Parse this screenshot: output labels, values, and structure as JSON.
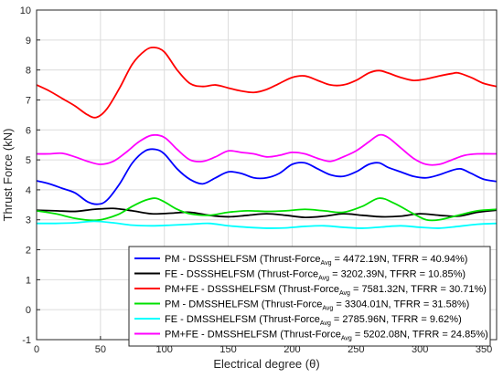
{
  "chart_data": {
    "type": "line",
    "title": "",
    "xlabel": "Electrical degree (θ)",
    "ylabel": "Thrust Force (kN)",
    "xlim": [
      0,
      360
    ],
    "ylim": [
      -1,
      10
    ],
    "xticks": [
      "0",
      "50",
      "100",
      "150",
      "200",
      "250",
      "300",
      "350"
    ],
    "yticks": [
      "-1",
      "0",
      "1",
      "2",
      "3",
      "4",
      "5",
      "6",
      "7",
      "8",
      "9",
      "10"
    ],
    "grid": true,
    "legend_position": "bottom-right",
    "series": [
      {
        "name": "PM - DSSSHELFSM",
        "stat_pre": "(Thrust-Force",
        "stat_sub": "Avg",
        "stat_post": "= 4472.19N, TFRR = 40.94%)",
        "color": "#0000ff",
        "x": [
          0,
          10,
          20,
          30,
          40,
          48,
          55,
          65,
          75,
          85,
          93,
          100,
          110,
          120,
          130,
          140,
          150,
          160,
          170,
          180,
          190,
          200,
          210,
          220,
          230,
          240,
          250,
          260,
          268,
          275,
          285,
          295,
          305,
          315,
          325,
          332,
          340,
          350,
          360
        ],
        "y": [
          4.3,
          4.2,
          4.05,
          3.9,
          3.6,
          3.52,
          3.65,
          4.2,
          4.9,
          5.3,
          5.35,
          5.2,
          4.7,
          4.35,
          4.2,
          4.4,
          4.6,
          4.55,
          4.4,
          4.4,
          4.55,
          4.85,
          4.9,
          4.7,
          4.5,
          4.45,
          4.6,
          4.85,
          4.9,
          4.75,
          4.6,
          4.45,
          4.4,
          4.5,
          4.65,
          4.7,
          4.55,
          4.35,
          4.28
        ]
      },
      {
        "name": "FE - DSSSHELFSM",
        "stat_pre": "(Thrust-Force",
        "stat_sub": "Avg",
        "stat_post": "= 3202.39N, TFRR = 10.85%)",
        "color": "#000000",
        "x": [
          0,
          15,
          30,
          45,
          60,
          75,
          90,
          105,
          120,
          135,
          150,
          165,
          180,
          195,
          210,
          225,
          240,
          255,
          270,
          285,
          300,
          315,
          330,
          345,
          360
        ],
        "y": [
          3.32,
          3.3,
          3.28,
          3.35,
          3.38,
          3.3,
          3.2,
          3.22,
          3.25,
          3.15,
          3.1,
          3.15,
          3.2,
          3.15,
          3.08,
          3.12,
          3.2,
          3.15,
          3.1,
          3.12,
          3.2,
          3.15,
          3.12,
          3.25,
          3.32
        ]
      },
      {
        "name": "PM+FE - DSSSHELFSM",
        "stat_pre": "(Thrust-Force",
        "stat_sub": "Avg",
        "stat_post": "= 7581.32N, TFRR = 30.71%)",
        "color": "#ff0000",
        "x": [
          0,
          10,
          20,
          30,
          40,
          47,
          55,
          65,
          75,
          85,
          92,
          100,
          110,
          120,
          130,
          140,
          150,
          160,
          170,
          180,
          190,
          200,
          210,
          220,
          230,
          240,
          250,
          260,
          268,
          275,
          285,
          295,
          305,
          315,
          325,
          330,
          340,
          350,
          360
        ],
        "y": [
          7.5,
          7.3,
          7.05,
          6.8,
          6.5,
          6.42,
          6.7,
          7.4,
          8.2,
          8.65,
          8.75,
          8.6,
          8.0,
          7.55,
          7.45,
          7.5,
          7.4,
          7.3,
          7.25,
          7.35,
          7.55,
          7.75,
          7.8,
          7.65,
          7.5,
          7.5,
          7.65,
          7.9,
          7.98,
          7.9,
          7.75,
          7.65,
          7.7,
          7.8,
          7.88,
          7.9,
          7.75,
          7.55,
          7.45
        ]
      },
      {
        "name": "PM - DMSSHELFSM",
        "stat_pre": "(Thrust-Force",
        "stat_sub": "Avg",
        "stat_post": "= 3304.01N, TFRR = 31.58%)",
        "color": "#00e000",
        "x": [
          0,
          15,
          30,
          45,
          55,
          65,
          75,
          85,
          93,
          100,
          110,
          120,
          135,
          150,
          165,
          180,
          195,
          210,
          225,
          240,
          255,
          268,
          280,
          295,
          305,
          315,
          330,
          345,
          360
        ],
        "y": [
          3.3,
          3.2,
          3.05,
          2.98,
          3.05,
          3.2,
          3.45,
          3.65,
          3.72,
          3.6,
          3.35,
          3.2,
          3.15,
          3.25,
          3.3,
          3.28,
          3.3,
          3.35,
          3.3,
          3.25,
          3.45,
          3.72,
          3.55,
          3.2,
          3.0,
          3.0,
          3.15,
          3.3,
          3.35
        ]
      },
      {
        "name": "FE - DMSSHELFSM",
        "stat_pre": "(Thrust-Force",
        "stat_sub": "Avg",
        "stat_post": "= 2785.96N, TFRR = 9.62%)",
        "color": "#00ffff",
        "x": [
          0,
          15,
          30,
          45,
          60,
          75,
          90,
          105,
          120,
          135,
          150,
          165,
          180,
          195,
          210,
          225,
          240,
          255,
          270,
          285,
          300,
          315,
          330,
          345,
          360
        ],
        "y": [
          2.88,
          2.88,
          2.9,
          2.95,
          2.9,
          2.82,
          2.8,
          2.82,
          2.85,
          2.88,
          2.8,
          2.75,
          2.72,
          2.73,
          2.78,
          2.8,
          2.75,
          2.72,
          2.76,
          2.8,
          2.75,
          2.72,
          2.78,
          2.85,
          2.88
        ]
      },
      {
        "name": "PM+FE - DMSSHELFSM",
        "stat_pre": "(Thrust-Force",
        "stat_sub": "Avg",
        "stat_post": "= 5202.08N, TFRR = 24.85%)",
        "color": "#ff00ff",
        "x": [
          0,
          10,
          20,
          30,
          40,
          50,
          60,
          70,
          80,
          90,
          100,
          110,
          120,
          130,
          140,
          150,
          160,
          170,
          180,
          190,
          200,
          210,
          220,
          230,
          240,
          250,
          260,
          268,
          275,
          285,
          295,
          305,
          315,
          325,
          335,
          345,
          360
        ],
        "y": [
          5.2,
          5.2,
          5.22,
          5.1,
          4.95,
          4.85,
          4.95,
          5.25,
          5.6,
          5.82,
          5.75,
          5.35,
          5.0,
          4.95,
          5.1,
          5.3,
          5.25,
          5.2,
          5.1,
          5.15,
          5.25,
          5.2,
          5.05,
          4.95,
          5.1,
          5.3,
          5.6,
          5.83,
          5.75,
          5.4,
          5.05,
          4.85,
          4.85,
          5.0,
          5.15,
          5.2,
          5.2
        ]
      }
    ]
  }
}
